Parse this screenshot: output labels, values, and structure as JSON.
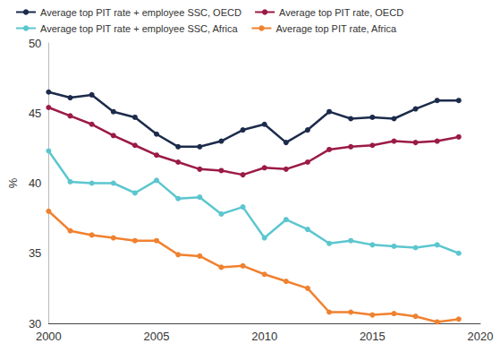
{
  "chart_data": {
    "type": "line",
    "y_label": "%",
    "x": [
      2000,
      2001,
      2002,
      2003,
      2004,
      2005,
      2006,
      2007,
      2008,
      2009,
      2010,
      2011,
      2012,
      2013,
      2014,
      2015,
      2016,
      2017,
      2018,
      2019
    ],
    "xlim": [
      2000,
      2020
    ],
    "xticks": [
      2000,
      2005,
      2010,
      2015,
      2020
    ],
    "ylim": [
      30,
      50
    ],
    "yticks": [
      30,
      35,
      40,
      45,
      50
    ],
    "grid": false,
    "legend": "top",
    "marker": "circle",
    "series": [
      {
        "name": "Average top PIT rate + employee SSC, OECD",
        "color": "#1c2b4b",
        "values": [
          46.5,
          46.1,
          46.3,
          45.1,
          44.7,
          43.5,
          42.6,
          42.6,
          43.0,
          43.8,
          44.2,
          42.9,
          43.8,
          45.1,
          44.6,
          44.7,
          44.6,
          45.3,
          45.9,
          45.9
        ]
      },
      {
        "name": "Average top PIT rate, OECD",
        "color": "#9b1b45",
        "values": [
          45.4,
          44.8,
          44.2,
          43.4,
          42.7,
          42.0,
          41.5,
          41.0,
          40.9,
          40.6,
          41.1,
          41.0,
          41.5,
          42.4,
          42.6,
          42.7,
          43.0,
          42.9,
          43.0,
          43.3
        ]
      },
      {
        "name": "Average top PIT rate + employee SSC, Africa",
        "color": "#5cc6cf",
        "values": [
          42.3,
          40.1,
          40.0,
          40.0,
          39.3,
          40.2,
          38.9,
          39.0,
          37.8,
          38.3,
          36.1,
          37.4,
          36.7,
          35.7,
          35.9,
          35.6,
          35.5,
          35.4,
          35.6,
          35.0
        ]
      },
      {
        "name": "Average top PIT rate, Africa",
        "color": "#f0812f",
        "values": [
          38.0,
          36.6,
          36.3,
          36.1,
          35.9,
          35.9,
          34.9,
          34.8,
          34.0,
          34.1,
          33.5,
          33.0,
          32.5,
          30.8,
          30.8,
          30.6,
          30.7,
          30.5,
          30.1,
          30.3
        ]
      }
    ]
  }
}
